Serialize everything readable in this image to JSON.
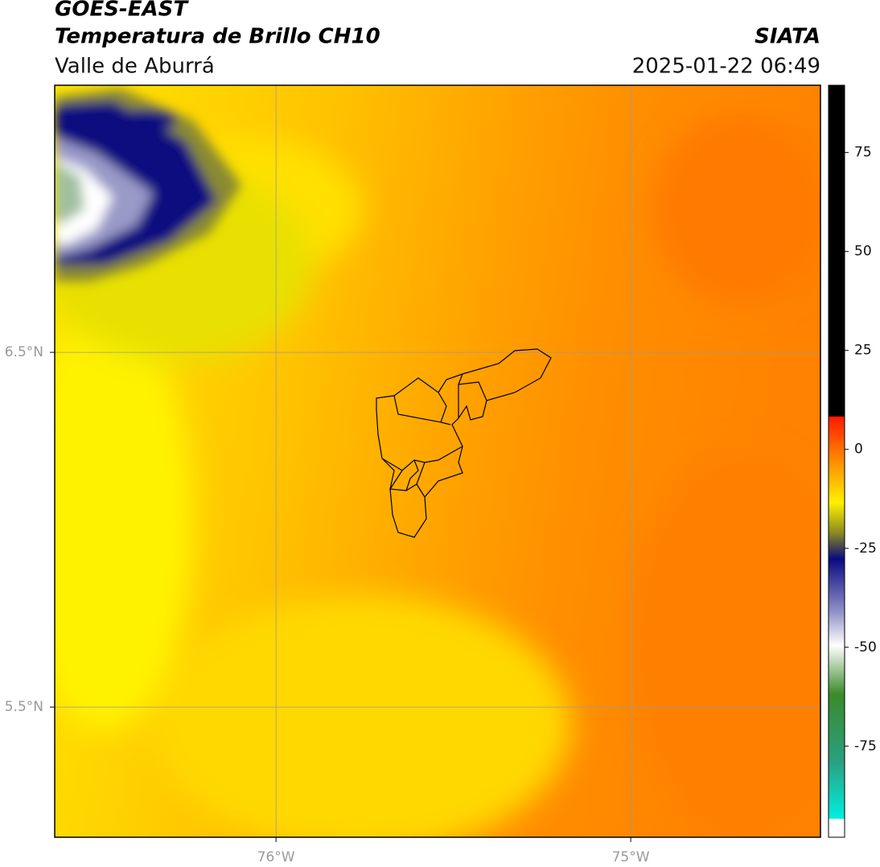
{
  "header": {
    "satellite": "GOES-EAST",
    "product": "Temperatura de Brillo CH10",
    "source": "SIATA",
    "region": "Valle de Aburrá",
    "datetime": "2025-01-22 06:49"
  },
  "map": {
    "xlim": [
      -76.624,
      -74.465
    ],
    "ylim": [
      5.133,
      7.253
    ],
    "xticks": [
      {
        "value": -76,
        "label": "76°W"
      },
      {
        "value": -75,
        "label": "75°W"
      }
    ],
    "yticks": [
      {
        "value": 6.5,
        "label": "6.5°N"
      },
      {
        "value": 5.5,
        "label": "5.5°N"
      }
    ],
    "grid": true
  },
  "colorbar": {
    "ylim": [
      -98,
      92
    ],
    "yticks": [
      75,
      50,
      25,
      0,
      -25,
      -50,
      -75
    ]
  }
}
